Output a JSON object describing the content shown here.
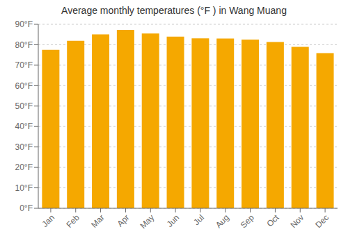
{
  "chart_data": {
    "type": "bar",
    "title": "Average monthly temperatures (°F ) in Wang Muang",
    "categories": [
      "Jan",
      "Feb",
      "Mar",
      "Apr",
      "May",
      "Jun",
      "Jul",
      "Aug",
      "Sep",
      "Oct",
      "Nov",
      "Dec"
    ],
    "values": [
      77.5,
      81.9,
      85.1,
      87.3,
      85.5,
      84.0,
      83.1,
      83.0,
      82.5,
      81.3,
      79.0,
      75.9
    ],
    "color": "#F5A800",
    "ylim": [
      0,
      90
    ],
    "yticks": [
      {
        "value": 0,
        "label": "0°F"
      },
      {
        "value": 10,
        "label": "10°F"
      },
      {
        "value": 20,
        "label": "20°F"
      },
      {
        "value": 30,
        "label": "30°F"
      },
      {
        "value": 40,
        "label": "40°F"
      },
      {
        "value": 50,
        "label": "50°F"
      },
      {
        "value": 60,
        "label": "60°F"
      },
      {
        "value": 70,
        "label": "70°F"
      },
      {
        "value": 80,
        "label": "80°F"
      },
      {
        "value": 90,
        "label": "90°F"
      }
    ],
    "grid": true
  }
}
